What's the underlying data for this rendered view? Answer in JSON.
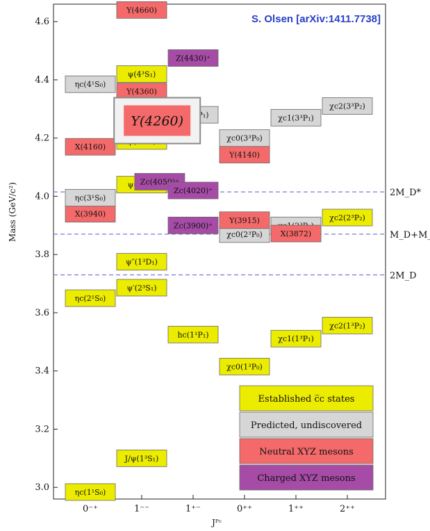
{
  "chart_data": {
    "type": "spectrum",
    "credit": "S. Olsen [arXiv:1411.7738]",
    "ylabel": "Mass (GeV/c²)",
    "xlabel": "Jᴾᶜ",
    "ylim": [
      2.96,
      4.66
    ],
    "yticks": [
      "3.0",
      "3.2",
      "3.4",
      "3.6",
      "3.8",
      "4.0",
      "4.2",
      "4.4",
      "4.6"
    ],
    "categories": [
      "0⁻⁺",
      "1⁻⁻",
      "1⁺⁻",
      "0⁺⁺",
      "1⁺⁺",
      "2⁺⁺"
    ],
    "colors": {
      "established": "#ecec00",
      "predicted": "#d6d6d6",
      "neutral": "#f46a6a",
      "charged": "#a64ca6"
    },
    "thresholds": [
      {
        "label": "2M_D*",
        "mass": 4.015
      },
      {
        "label": "M_D+M_D*",
        "mass": 3.87
      },
      {
        "label": "2M_D",
        "mass": 3.73
      }
    ],
    "states": [
      {
        "label": "ηc(1¹S₀)",
        "kind": "established",
        "col": 0,
        "mass": 2.984
      },
      {
        "label": "ηc(2¹S₀)",
        "kind": "established",
        "col": 0,
        "mass": 3.65
      },
      {
        "label": "X(3940)",
        "kind": "neutral",
        "col": 0,
        "mass": 3.94
      },
      {
        "label": "ηc(3¹S₀)",
        "kind": "predicted",
        "col": 0,
        "mass": 3.995
      },
      {
        "label": "X(4160)",
        "kind": "neutral",
        "col": 0,
        "mass": 4.17
      },
      {
        "label": "ηc(4¹S₀)",
        "kind": "predicted",
        "col": 0,
        "mass": 4.385
      },
      {
        "label": "J/ψ(1³S₁)",
        "kind": "established",
        "col": 1,
        "mass": 3.1
      },
      {
        "label": "ψ′(2³S₁)",
        "kind": "established",
        "col": 1,
        "mass": 3.686
      },
      {
        "label": "ψ″(1³D₁)",
        "kind": "established",
        "col": 1,
        "mass": 3.775
      },
      {
        "label": "ψ(3³S₁)",
        "kind": "established",
        "col": 1,
        "mass": 4.04
      },
      {
        "label": "ψ(2³D₁)",
        "kind": "established",
        "col": 1,
        "mass": 4.19
      },
      {
        "label": "Y(4360)",
        "kind": "neutral",
        "col": 1,
        "mass": 4.36
      },
      {
        "label": "ψ(4³S₁)",
        "kind": "established",
        "col": 1,
        "mass": 4.42
      },
      {
        "label": "Y(4660)",
        "kind": "neutral",
        "col": 1,
        "mass": 4.64
      },
      {
        "label": "Zc(4050)⁺",
        "kind": "charged",
        "col": 1.35,
        "mass": 4.05
      },
      {
        "label": "hc(1¹P₁)",
        "kind": "established",
        "col": 2,
        "mass": 3.525
      },
      {
        "label": "Zc(3900)⁺",
        "kind": "charged",
        "col": 2,
        "mass": 3.9
      },
      {
        "label": "Zc(4020)⁺",
        "kind": "charged",
        "col": 2,
        "mass": 4.02
      },
      {
        "label": "hc(3¹P₁)",
        "kind": "predicted",
        "col": 2,
        "mass": 4.28
      },
      {
        "label": "Z(4430)⁺",
        "kind": "charged",
        "col": 2,
        "mass": 4.475
      },
      {
        "label": "χc0(1³P₀)",
        "kind": "established",
        "col": 3,
        "mass": 3.415
      },
      {
        "label": "χc0(2³P₀)",
        "kind": "predicted",
        "col": 3,
        "mass": 3.87
      },
      {
        "label": "Y(3915)",
        "kind": "neutral",
        "col": 3,
        "mass": 3.918
      },
      {
        "label": "Y(4140)",
        "kind": "neutral",
        "col": 3,
        "mass": 4.143
      },
      {
        "label": "χc0(3³P₀)",
        "kind": "predicted",
        "col": 3,
        "mass": 4.2
      },
      {
        "label": "χc1(1³P₁)",
        "kind": "established",
        "col": 4,
        "mass": 3.511
      },
      {
        "label": "χc1(2³P₁)",
        "kind": "predicted",
        "col": 4,
        "mass": 3.9
      },
      {
        "label": "X(3872)",
        "kind": "neutral",
        "col": 4,
        "mass": 3.872
      },
      {
        "label": "χc1(3³P₁)",
        "kind": "predicted",
        "col": 4,
        "mass": 4.27
      },
      {
        "label": "χc2(1³P₂)",
        "kind": "established",
        "col": 5,
        "mass": 3.556
      },
      {
        "label": "χc2(2³P₂)",
        "kind": "established",
        "col": 5,
        "mass": 3.927
      },
      {
        "label": "χc2(3³P₂)",
        "kind": "predicted",
        "col": 5,
        "mass": 4.31
      }
    ],
    "highlight": {
      "label": "Y(4260)",
      "mass": 4.26
    },
    "legend": {
      "position": "bottom-right",
      "items": [
        {
          "kind": "established",
          "label": "Established c̅c states"
        },
        {
          "kind": "predicted",
          "label": "Predicted, undiscovered"
        },
        {
          "kind": "neutral",
          "label": "Neutral XYZ mesons"
        },
        {
          "kind": "charged",
          "label": "Charged XYZ mesons"
        }
      ]
    }
  }
}
